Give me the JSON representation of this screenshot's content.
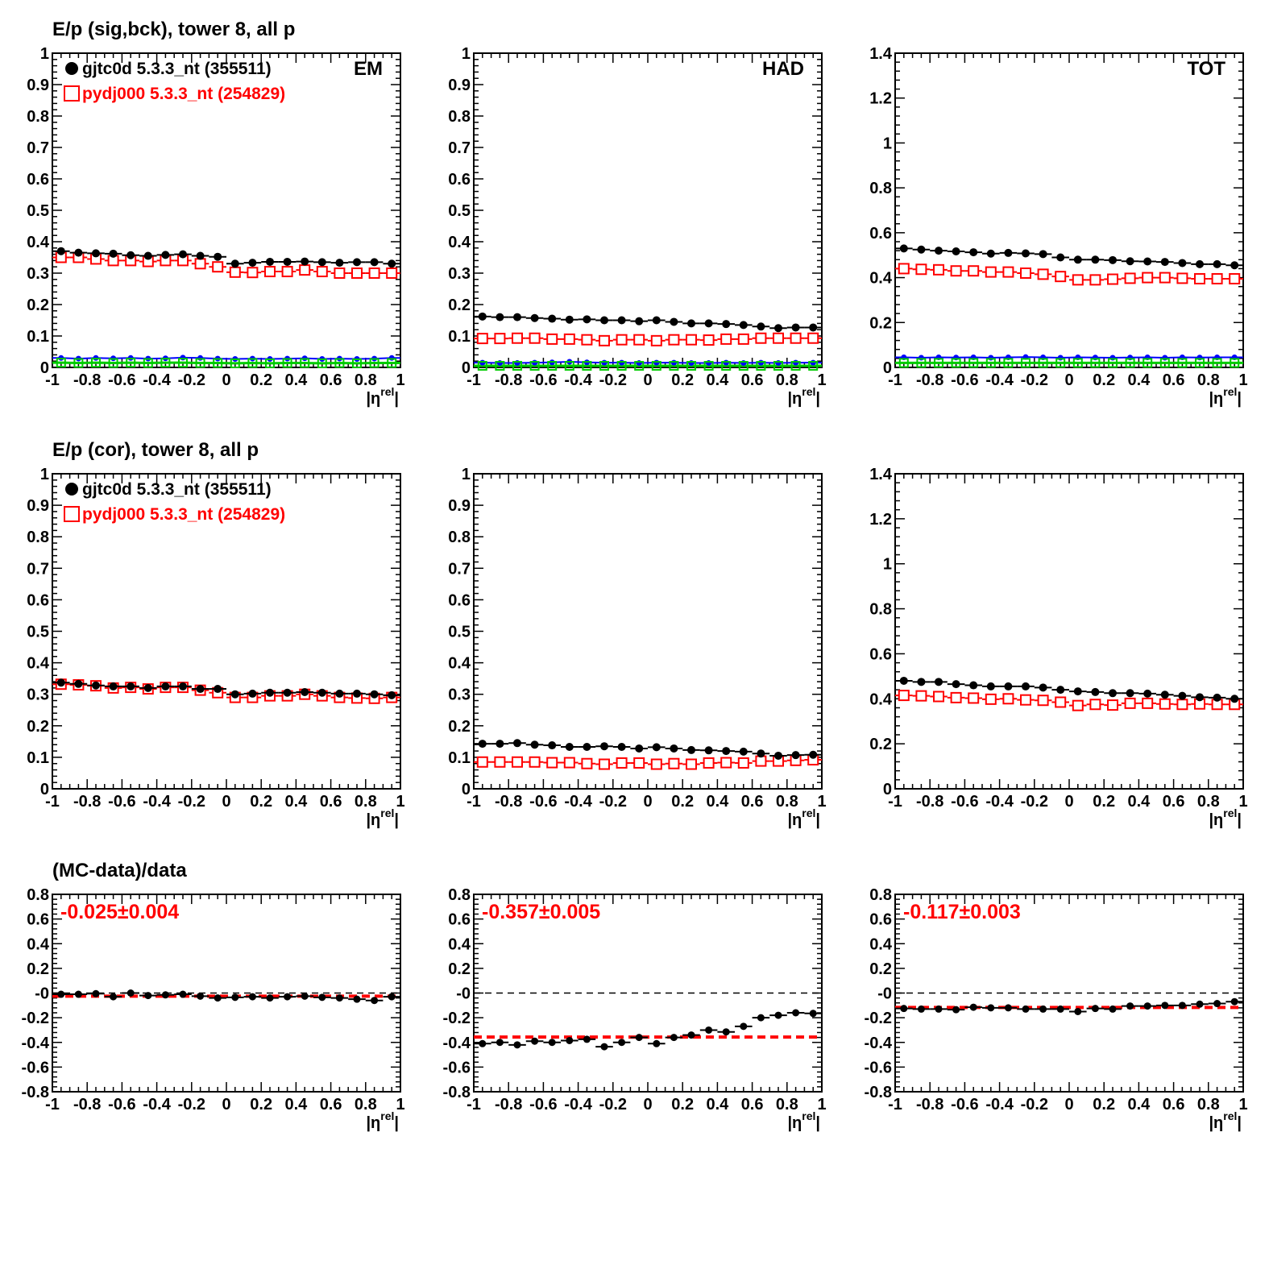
{
  "legend": {
    "series_a": "gjtc0d 5.3.3_nt (355511)",
    "series_b": "pydj000 5.3.3_nt (254829)"
  },
  "row_titles": [
    "E/p (sig,bck), tower 8, all p",
    "E/p (cor), tower 8, all p",
    "(MC-data)/data"
  ],
  "corner_labels": [
    "EM",
    "HAD",
    "TOT"
  ],
  "x_axis": {
    "label": "|η",
    "label_sup": "rel",
    "label_end": "|",
    "ticks": [
      "-1",
      "-0.8",
      "-0.6",
      "-0.4",
      "-0.2",
      "0",
      "0.2",
      "0.4",
      "0.6",
      "0.8",
      "1"
    ]
  },
  "fit_labels": [
    "-0.025±0.004",
    "-0.357±0.005",
    "-0.117±0.003"
  ],
  "colors": {
    "data": "#000000",
    "mc": "#ff0000",
    "bck_data": "#0000ff",
    "bck_mc": "#00cc00"
  },
  "chart_data": [
    {
      "type": "scatter",
      "panel": "sig-bck-EM",
      "title": "E/p (sig,bck), tower 8, all p",
      "corner": "EM",
      "xlabel": "|η^rel|",
      "xlim": [
        -1,
        1
      ],
      "ylim": [
        0,
        1
      ],
      "yticks": [
        "0",
        "0.1",
        "0.2",
        "0.3",
        "0.4",
        "0.5",
        "0.6",
        "0.7",
        "0.8",
        "0.9",
        "1"
      ],
      "x": [
        -0.95,
        -0.85,
        -0.75,
        -0.65,
        -0.55,
        -0.45,
        -0.35,
        -0.25,
        -0.15,
        -0.05,
        0.05,
        0.15,
        0.25,
        0.35,
        0.45,
        0.55,
        0.65,
        0.75,
        0.85,
        0.95
      ],
      "series": [
        {
          "name": "gjtc0d 5.3.3_nt (355511)",
          "values": [
            0.37,
            0.365,
            0.363,
            0.362,
            0.357,
            0.355,
            0.358,
            0.36,
            0.355,
            0.352,
            0.33,
            0.333,
            0.336,
            0.336,
            0.337,
            0.335,
            0.333,
            0.335,
            0.335,
            0.33
          ]
        },
        {
          "name": "pydj000 5.3.3_nt (254829)",
          "values": [
            0.35,
            0.35,
            0.345,
            0.34,
            0.34,
            0.337,
            0.34,
            0.34,
            0.33,
            0.32,
            0.303,
            0.302,
            0.305,
            0.305,
            0.31,
            0.305,
            0.3,
            0.3,
            0.3,
            0.3
          ]
        },
        {
          "values": [
            0.03,
            0.028,
            0.03,
            0.029,
            0.03,
            0.028,
            0.029,
            0.031,
            0.03,
            0.028,
            0.027,
            0.028,
            0.027,
            0.028,
            0.029,
            0.027,
            0.028,
            0.027,
            0.028,
            0.03
          ]
        },
        {
          "values": [
            0.015,
            0.014,
            0.015,
            0.014,
            0.015,
            0.014,
            0.015,
            0.015,
            0.014,
            0.014,
            0.013,
            0.014,
            0.013,
            0.014,
            0.014,
            0.013,
            0.014,
            0.013,
            0.014,
            0.014
          ]
        }
      ]
    },
    {
      "type": "scatter",
      "panel": "sig-bck-HAD",
      "corner": "HAD",
      "xlabel": "|η^rel|",
      "xlim": [
        -1,
        1
      ],
      "ylim": [
        0,
        1
      ],
      "yticks": [
        "0",
        "0.1",
        "0.2",
        "0.3",
        "0.4",
        "0.5",
        "0.6",
        "0.7",
        "0.8",
        "0.9",
        "1"
      ],
      "x": [
        -0.95,
        -0.85,
        -0.75,
        -0.65,
        -0.55,
        -0.45,
        -0.35,
        -0.25,
        -0.15,
        -0.05,
        0.05,
        0.15,
        0.25,
        0.35,
        0.45,
        0.55,
        0.65,
        0.75,
        0.85,
        0.95
      ],
      "series": [
        {
          "name": "gjtc0d 5.3.3_nt (355511)",
          "values": [
            0.162,
            0.16,
            0.16,
            0.157,
            0.155,
            0.152,
            0.153,
            0.15,
            0.15,
            0.147,
            0.15,
            0.145,
            0.14,
            0.14,
            0.138,
            0.135,
            0.13,
            0.125,
            0.127,
            0.127
          ]
        },
        {
          "name": "pydj000 5.3.3_nt (254829)",
          "values": [
            0.092,
            0.092,
            0.093,
            0.093,
            0.09,
            0.09,
            0.088,
            0.085,
            0.088,
            0.088,
            0.085,
            0.088,
            0.088,
            0.087,
            0.09,
            0.09,
            0.093,
            0.093,
            0.093,
            0.093
          ]
        },
        {
          "values": [
            0.015,
            0.014,
            0.014,
            0.015,
            0.016,
            0.018,
            0.016,
            0.015,
            0.015,
            0.014,
            0.015,
            0.015,
            0.014,
            0.014,
            0.015,
            0.014,
            0.015,
            0.014,
            0.015,
            0.015
          ]
        },
        {
          "values": [
            0.005,
            0.005,
            0.005,
            0.005,
            0.005,
            0.005,
            0.005,
            0.005,
            0.005,
            0.005,
            0.005,
            0.005,
            0.005,
            0.005,
            0.005,
            0.005,
            0.005,
            0.005,
            0.005,
            0.005
          ]
        }
      ]
    },
    {
      "type": "scatter",
      "panel": "sig-bck-TOT",
      "corner": "TOT",
      "xlabel": "|η^rel|",
      "xlim": [
        -1,
        1
      ],
      "ylim": [
        0,
        1.4
      ],
      "yticks": [
        "0",
        "0.2",
        "0.4",
        "0.6",
        "0.8",
        "1",
        "1.2",
        "1.4"
      ],
      "x": [
        -0.95,
        -0.85,
        -0.75,
        -0.65,
        -0.55,
        -0.45,
        -0.35,
        -0.25,
        -0.15,
        -0.05,
        0.05,
        0.15,
        0.25,
        0.35,
        0.45,
        0.55,
        0.65,
        0.75,
        0.85,
        0.95
      ],
      "series": [
        {
          "name": "gjtc0d 5.3.3_nt (355511)",
          "values": [
            0.53,
            0.525,
            0.52,
            0.517,
            0.513,
            0.507,
            0.51,
            0.508,
            0.505,
            0.49,
            0.48,
            0.48,
            0.478,
            0.473,
            0.472,
            0.47,
            0.465,
            0.46,
            0.46,
            0.455
          ]
        },
        {
          "name": "pydj000 5.3.3_nt (254829)",
          "values": [
            0.44,
            0.437,
            0.435,
            0.43,
            0.43,
            0.425,
            0.425,
            0.42,
            0.415,
            0.405,
            0.39,
            0.39,
            0.393,
            0.397,
            0.4,
            0.4,
            0.397,
            0.395,
            0.395,
            0.395
          ]
        },
        {
          "values": [
            0.045,
            0.043,
            0.045,
            0.044,
            0.045,
            0.043,
            0.045,
            0.046,
            0.045,
            0.043,
            0.045,
            0.044,
            0.043,
            0.044,
            0.045,
            0.043,
            0.045,
            0.044,
            0.045,
            0.045
          ]
        },
        {
          "values": [
            0.02,
            0.02,
            0.02,
            0.02,
            0.02,
            0.02,
            0.02,
            0.02,
            0.02,
            0.02,
            0.02,
            0.02,
            0.02,
            0.02,
            0.02,
            0.02,
            0.02,
            0.02,
            0.02,
            0.02
          ]
        }
      ]
    },
    {
      "type": "scatter",
      "panel": "cor-EM",
      "title": "E/p (cor), tower 8, all p",
      "xlabel": "|η^rel|",
      "xlim": [
        -1,
        1
      ],
      "ylim": [
        0,
        1
      ],
      "yticks": [
        "0",
        "0.1",
        "0.2",
        "0.3",
        "0.4",
        "0.5",
        "0.6",
        "0.7",
        "0.8",
        "0.9",
        "1"
      ],
      "x": [
        -0.95,
        -0.85,
        -0.75,
        -0.65,
        -0.55,
        -0.45,
        -0.35,
        -0.25,
        -0.15,
        -0.05,
        0.05,
        0.15,
        0.25,
        0.35,
        0.45,
        0.55,
        0.65,
        0.75,
        0.85,
        0.95
      ],
      "series": [
        {
          "name": "gjtc0d 5.3.3_nt (355511)",
          "values": [
            0.337,
            0.333,
            0.328,
            0.325,
            0.325,
            0.32,
            0.325,
            0.325,
            0.317,
            0.317,
            0.3,
            0.302,
            0.305,
            0.305,
            0.307,
            0.305,
            0.302,
            0.302,
            0.3,
            0.297
          ]
        },
        {
          "name": "pydj000 5.3.3_nt (254829)",
          "values": [
            0.332,
            0.33,
            0.327,
            0.32,
            0.322,
            0.317,
            0.322,
            0.322,
            0.313,
            0.305,
            0.29,
            0.29,
            0.295,
            0.295,
            0.3,
            0.295,
            0.29,
            0.288,
            0.287,
            0.29
          ]
        }
      ]
    },
    {
      "type": "scatter",
      "panel": "cor-HAD",
      "xlabel": "|η^rel|",
      "xlim": [
        -1,
        1
      ],
      "ylim": [
        0,
        1
      ],
      "yticks": [
        "0",
        "0.1",
        "0.2",
        "0.3",
        "0.4",
        "0.5",
        "0.6",
        "0.7",
        "0.8",
        "0.9",
        "1"
      ],
      "x": [
        -0.95,
        -0.85,
        -0.75,
        -0.65,
        -0.55,
        -0.45,
        -0.35,
        -0.25,
        -0.15,
        -0.05,
        0.05,
        0.15,
        0.25,
        0.35,
        0.45,
        0.55,
        0.65,
        0.75,
        0.85,
        0.95
      ],
      "series": [
        {
          "name": "gjtc0d 5.3.3_nt (355511)",
          "values": [
            0.143,
            0.143,
            0.145,
            0.14,
            0.138,
            0.133,
            0.133,
            0.135,
            0.133,
            0.128,
            0.132,
            0.128,
            0.123,
            0.122,
            0.12,
            0.118,
            0.112,
            0.105,
            0.107,
            0.108
          ]
        },
        {
          "name": "pydj000 5.3.3_nt (254829)",
          "values": [
            0.085,
            0.085,
            0.085,
            0.085,
            0.083,
            0.083,
            0.08,
            0.078,
            0.082,
            0.082,
            0.078,
            0.08,
            0.078,
            0.082,
            0.083,
            0.082,
            0.088,
            0.088,
            0.09,
            0.092
          ]
        }
      ]
    },
    {
      "type": "scatter",
      "panel": "cor-TOT",
      "xlabel": "|η^rel|",
      "xlim": [
        -1,
        1
      ],
      "ylim": [
        0,
        1.4
      ],
      "yticks": [
        "0",
        "0.2",
        "0.4",
        "0.6",
        "0.8",
        "1",
        "1.2",
        "1.4"
      ],
      "x": [
        -0.95,
        -0.85,
        -0.75,
        -0.65,
        -0.55,
        -0.45,
        -0.35,
        -0.25,
        -0.15,
        -0.05,
        0.05,
        0.15,
        0.25,
        0.35,
        0.45,
        0.55,
        0.65,
        0.75,
        0.85,
        0.95
      ],
      "series": [
        {
          "name": "gjtc0d 5.3.3_nt (355511)",
          "values": [
            0.48,
            0.475,
            0.475,
            0.465,
            0.46,
            0.455,
            0.455,
            0.455,
            0.45,
            0.44,
            0.433,
            0.43,
            0.425,
            0.425,
            0.423,
            0.418,
            0.413,
            0.407,
            0.405,
            0.4
          ]
        },
        {
          "name": "pydj000 5.3.3_nt (254829)",
          "values": [
            0.415,
            0.413,
            0.41,
            0.405,
            0.403,
            0.398,
            0.4,
            0.395,
            0.393,
            0.385,
            0.37,
            0.375,
            0.372,
            0.38,
            0.38,
            0.377,
            0.375,
            0.377,
            0.375,
            0.375
          ]
        }
      ]
    },
    {
      "type": "scatter",
      "panel": "ratio-EM",
      "title": "(MC-data)/data",
      "xlabel": "|η^rel|",
      "xlim": [
        -1,
        1
      ],
      "ylim": [
        -0.8,
        0.8
      ],
      "yticks": [
        "-0.8",
        "-0.6",
        "-0.4",
        "-0.2",
        "-0",
        "0.2",
        "0.4",
        "0.6",
        "0.8"
      ],
      "fit": -0.025,
      "fit_label": "-0.025±0.004",
      "x": [
        -0.95,
        -0.85,
        -0.75,
        -0.65,
        -0.55,
        -0.45,
        -0.35,
        -0.25,
        -0.15,
        -0.05,
        0.05,
        0.15,
        0.25,
        0.35,
        0.45,
        0.55,
        0.65,
        0.75,
        0.85,
        0.95
      ],
      "series": [
        {
          "values": [
            -0.01,
            -0.01,
            -0.005,
            -0.03,
            0.0,
            -0.02,
            -0.015,
            -0.01,
            -0.025,
            -0.04,
            -0.035,
            -0.03,
            -0.04,
            -0.03,
            -0.025,
            -0.035,
            -0.04,
            -0.05,
            -0.06,
            -0.03
          ]
        }
      ]
    },
    {
      "type": "scatter",
      "panel": "ratio-HAD",
      "xlabel": "|η^rel|",
      "xlim": [
        -1,
        1
      ],
      "ylim": [
        -0.8,
        0.8
      ],
      "yticks": [
        "-0.8",
        "-0.6",
        "-0.4",
        "-0.2",
        "-0",
        "0.2",
        "0.4",
        "0.6",
        "0.8"
      ],
      "fit": -0.357,
      "fit_label": "-0.357±0.005",
      "x": [
        -0.95,
        -0.85,
        -0.75,
        -0.65,
        -0.55,
        -0.45,
        -0.35,
        -0.25,
        -0.15,
        -0.05,
        0.05,
        0.15,
        0.25,
        0.35,
        0.45,
        0.55,
        0.65,
        0.75,
        0.85,
        0.95
      ],
      "series": [
        {
          "values": [
            -0.41,
            -0.4,
            -0.42,
            -0.39,
            -0.4,
            -0.385,
            -0.375,
            -0.435,
            -0.4,
            -0.36,
            -0.41,
            -0.36,
            -0.34,
            -0.3,
            -0.315,
            -0.27,
            -0.2,
            -0.18,
            -0.16,
            -0.165
          ]
        }
      ]
    },
    {
      "type": "scatter",
      "panel": "ratio-TOT",
      "xlabel": "|η^rel|",
      "xlim": [
        -1,
        1
      ],
      "ylim": [
        -0.8,
        0.8
      ],
      "yticks": [
        "-0.8",
        "-0.6",
        "-0.4",
        "-0.2",
        "-0",
        "0.2",
        "0.4",
        "0.6",
        "0.8"
      ],
      "fit": -0.117,
      "fit_label": "-0.117±0.003",
      "x": [
        -0.95,
        -0.85,
        -0.75,
        -0.65,
        -0.55,
        -0.45,
        -0.35,
        -0.25,
        -0.15,
        -0.05,
        0.05,
        0.15,
        0.25,
        0.35,
        0.45,
        0.55,
        0.65,
        0.75,
        0.85,
        0.95
      ],
      "series": [
        {
          "values": [
            -0.125,
            -0.13,
            -0.13,
            -0.135,
            -0.115,
            -0.12,
            -0.12,
            -0.13,
            -0.13,
            -0.13,
            -0.15,
            -0.125,
            -0.13,
            -0.105,
            -0.105,
            -0.1,
            -0.1,
            -0.09,
            -0.085,
            -0.07
          ]
        }
      ]
    }
  ]
}
